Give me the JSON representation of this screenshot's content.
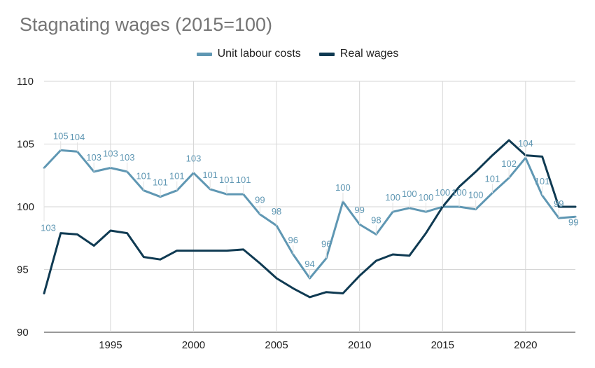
{
  "chart_data": {
    "type": "line",
    "title": "Stagnating wages (2015=100)",
    "xlabel": "",
    "ylabel": "",
    "xlim": [
      1991,
      2023
    ],
    "ylim": [
      90,
      110
    ],
    "x_ticks": [
      1995,
      2000,
      2005,
      2010,
      2015,
      2020
    ],
    "y_ticks": [
      90,
      95,
      100,
      105,
      110
    ],
    "grid": true,
    "legend_position": "top-center",
    "x": [
      1991,
      1992,
      1993,
      1994,
      1995,
      1996,
      1997,
      1998,
      1999,
      2000,
      2001,
      2002,
      2003,
      2004,
      2005,
      2006,
      2007,
      2008,
      2009,
      2010,
      2011,
      2012,
      2013,
      2014,
      2015,
      2016,
      2017,
      2018,
      2019,
      2020,
      2021,
      2022,
      2023
    ],
    "series": [
      {
        "name": "Unit labour costs",
        "color": "#5f97b3",
        "values": [
          103.1,
          104.5,
          104.4,
          102.8,
          103.1,
          102.8,
          101.3,
          100.8,
          101.3,
          102.7,
          101.4,
          101.0,
          101.0,
          99.4,
          98.5,
          96.2,
          94.3,
          95.9,
          100.4,
          98.6,
          97.8,
          99.6,
          99.9,
          99.6,
          100.0,
          100.0,
          99.8,
          101.1,
          102.3,
          103.9,
          100.9,
          99.1,
          99.2
        ],
        "data_labels": [
          "103",
          "105",
          "104",
          "103",
          "103",
          "103",
          "101",
          "101",
          "101",
          "103",
          "101",
          "101",
          "101",
          "99",
          "98",
          "96",
          "94",
          "96",
          "100",
          "99",
          "98",
          "100",
          "100",
          "100",
          "100",
          "100",
          "100",
          "101",
          "102",
          "104",
          "101",
          "99",
          "99"
        ]
      },
      {
        "name": "Real wages",
        "color": "#0f3a52",
        "values": [
          93.1,
          97.9,
          97.8,
          96.9,
          98.1,
          97.9,
          96.0,
          95.8,
          96.5,
          96.5,
          96.5,
          96.5,
          96.6,
          95.5,
          94.3,
          93.5,
          92.8,
          93.2,
          93.1,
          94.5,
          95.7,
          96.2,
          96.1,
          97.9,
          100.0,
          101.6,
          102.8,
          104.1,
          105.3,
          104.1,
          104.0,
          100.0,
          100.0
        ]
      }
    ]
  }
}
